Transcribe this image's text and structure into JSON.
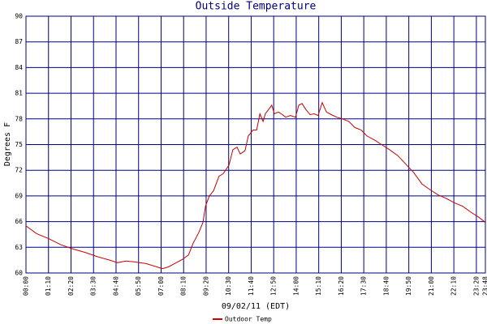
{
  "chart_data": {
    "type": "line",
    "title": "Outside Temperature",
    "x_label": "09/02/11 (EDT)",
    "y_label": "Degrees F",
    "x": [
      0,
      33,
      71,
      108,
      146,
      184,
      222,
      260,
      285,
      310,
      336,
      373,
      399,
      424,
      442,
      462,
      487,
      505,
      520,
      537,
      550,
      558,
      570,
      583,
      600,
      613,
      631,
      643,
      656,
      666,
      681,
      691,
      706,
      717,
      727,
      737,
      744,
      754,
      764,
      772,
      785,
      797,
      807,
      822,
      838,
      848,
      858,
      870,
      883,
      896,
      908,
      921,
      934,
      949,
      966,
      984,
      1004,
      1022,
      1042,
      1060,
      1085,
      1105,
      1130,
      1156,
      1181,
      1206,
      1231,
      1257,
      1282,
      1307,
      1332,
      1357,
      1383,
      1408,
      1428
    ],
    "series": [
      {
        "name": "Outdoor Temp",
        "color": "#cc0000",
        "values": [
          65.5,
          64.6,
          64.0,
          63.3,
          62.8,
          62.4,
          61.9,
          61.5,
          61.2,
          61.4,
          61.3,
          61.1,
          60.8,
          60.5,
          60.7,
          61.1,
          61.6,
          62.1,
          63.5,
          64.7,
          65.9,
          67.8,
          69.0,
          69.6,
          71.3,
          71.6,
          72.6,
          74.4,
          74.7,
          73.9,
          74.3,
          76.0,
          76.7,
          76.7,
          78.6,
          77.7,
          78.6,
          79.1,
          79.6,
          78.6,
          78.8,
          78.5,
          78.2,
          78.4,
          78.2,
          79.6,
          79.8,
          79.1,
          78.5,
          78.6,
          78.4,
          79.9,
          78.8,
          78.5,
          78.2,
          78.0,
          77.7,
          77.0,
          76.7,
          76.0,
          75.5,
          75.0,
          74.4,
          73.7,
          72.7,
          71.7,
          70.4,
          69.7,
          69.1,
          68.7,
          68.2,
          67.8,
          67.1,
          66.5,
          65.9
        ]
      }
    ],
    "xlim": [
      0,
      1428
    ],
    "xticks": [
      {
        "value": 0,
        "label": "00:00"
      },
      {
        "value": 70,
        "label": "01:10"
      },
      {
        "value": 140,
        "label": "02:20"
      },
      {
        "value": 210,
        "label": "03:30"
      },
      {
        "value": 280,
        "label": "04:40"
      },
      {
        "value": 350,
        "label": "05:50"
      },
      {
        "value": 420,
        "label": "07:00"
      },
      {
        "value": 490,
        "label": "08:10"
      },
      {
        "value": 560,
        "label": "09:20"
      },
      {
        "value": 630,
        "label": "10:30"
      },
      {
        "value": 700,
        "label": "11:40"
      },
      {
        "value": 770,
        "label": "12:50"
      },
      {
        "value": 840,
        "label": "14:00"
      },
      {
        "value": 910,
        "label": "15:10"
      },
      {
        "value": 980,
        "label": "16:20"
      },
      {
        "value": 1050,
        "label": "17:30"
      },
      {
        "value": 1120,
        "label": "18:40"
      },
      {
        "value": 1190,
        "label": "19:50"
      },
      {
        "value": 1260,
        "label": "21:00"
      },
      {
        "value": 1330,
        "label": "22:10"
      },
      {
        "value": 1400,
        "label": "23:20"
      },
      {
        "value": 1428,
        "label": "23:48"
      }
    ],
    "ylim": [
      60,
      90
    ],
    "yticks": [
      60,
      63,
      66,
      69,
      72,
      75,
      78,
      81,
      84,
      87,
      90
    ],
    "grid": true,
    "grid_color": "#000080"
  }
}
